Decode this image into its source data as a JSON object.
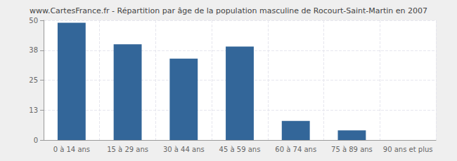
{
  "chart_data": {
    "type": "bar",
    "title": "www.CartesFrance.fr - Répartition par âge de la population masculine de Rocourt-Saint-Martin en 2007",
    "categories": [
      "0 à 14 ans",
      "15 à 29 ans",
      "30 à 44 ans",
      "45 à 59 ans",
      "60 à 74 ans",
      "75 à 89 ans",
      "90 ans et plus"
    ],
    "values": [
      49,
      40,
      34,
      39,
      8,
      4,
      0
    ],
    "color": "#336699",
    "ylim": [
      0,
      50
    ],
    "yticks": [
      0,
      {
        "value": 12.5,
        "label": "13"
      },
      25,
      {
        "value": 37.5,
        "label": "38"
      },
      50
    ],
    "grid": true
  }
}
